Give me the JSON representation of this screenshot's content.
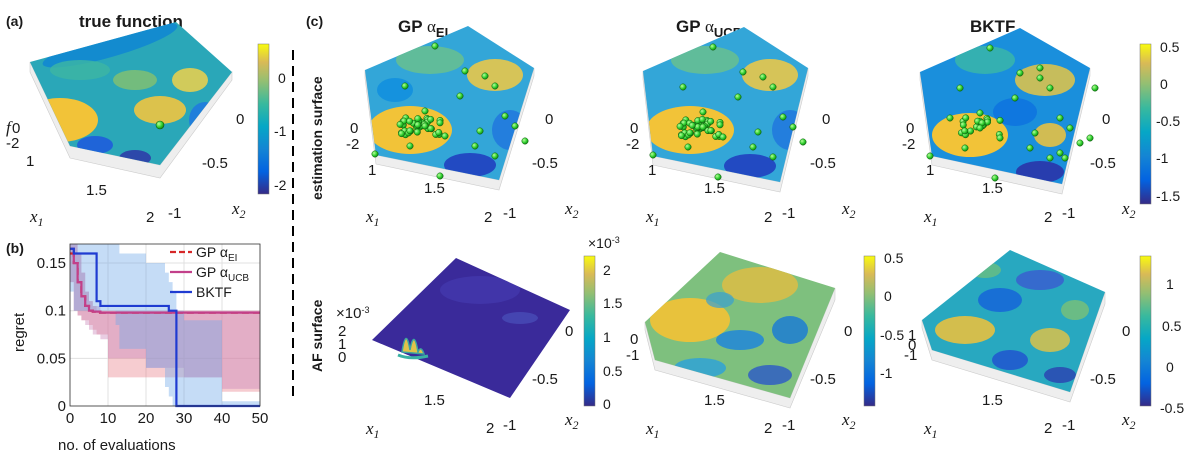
{
  "labels": {
    "a": "(a)",
    "b": "(b)",
    "c": "(c)"
  },
  "titles": {
    "true_fn": "true function",
    "gp": "GP",
    "alpha": "α",
    "ei": "EI",
    "ucb": "UCB",
    "bktf": "BKTF"
  },
  "rows": {
    "est": "estimation surface",
    "af": "AF surface"
  },
  "axes": {
    "x": "x",
    "x_sub1": "1",
    "x_sub2": "2",
    "f": "f",
    "x1_ticks": [
      "1",
      "1.5",
      "2"
    ],
    "x2_ticks": [
      "0",
      "-0.5",
      "-1"
    ],
    "f_ticks": [
      "0",
      "-2"
    ]
  },
  "colorbars": {
    "true_fn": [
      "0",
      "-1",
      "-2"
    ],
    "bktf_est": [
      "0.5",
      "0",
      "-0.5",
      "-1",
      "-1.5"
    ],
    "ei_af": [
      "2",
      "1.5",
      "1",
      "0.5",
      "0"
    ],
    "ei_af_exp": "×10",
    "ei_af_exp_pow": "-3",
    "ucb_af": [
      "0.5",
      "0",
      "-0.5",
      "-1"
    ],
    "bktf_af": [
      "1",
      "0.5",
      "0",
      "-0.5"
    ]
  },
  "af_z_ticks": {
    "ei_exp": "×10",
    "ei_exp_pow": "-3",
    "ei": [
      "2",
      "1",
      "0"
    ],
    "ucb": [
      "0",
      "-1"
    ],
    "bktf": [
      "1",
      "0",
      "-1"
    ]
  },
  "chart_data": {
    "type": "line",
    "panel": "(b)",
    "xlabel": "no. of evaluations",
    "ylabel": "regret",
    "xlim": [
      0,
      50
    ],
    "ylim": [
      0,
      0.17
    ],
    "x_ticks": [
      "0",
      "10",
      "20",
      "30",
      "40",
      "50"
    ],
    "y_ticks": [
      "0",
      "0.05",
      "0.1",
      "0.15"
    ],
    "legend_position": "top-right",
    "series": [
      {
        "name_main": "GP α",
        "name_sub": "EI",
        "color": "#d62728",
        "dash": "dashed",
        "x": [
          0,
          1,
          2,
          3,
          4,
          5,
          6,
          7,
          8,
          10,
          15,
          20,
          30,
          40,
          50
        ],
        "y": [
          0.16,
          0.15,
          0.13,
          0.115,
          0.105,
          0.1,
          0.099,
          0.098,
          0.098,
          0.098,
          0.098,
          0.098,
          0.098,
          0.098,
          0.098
        ],
        "band_upper": [
          0.17,
          0.17,
          0.16,
          0.14,
          0.12,
          0.11,
          0.105,
          0.1,
          0.1,
          0.1,
          0.1,
          0.1,
          0.1,
          0.1,
          0.1
        ],
        "band_lower": [
          0.13,
          0.1,
          0.095,
          0.09,
          0.09,
          0.085,
          0.08,
          0.075,
          0.075,
          0.03,
          0.03,
          0.03,
          0.03,
          0.015,
          0.015
        ]
      },
      {
        "name_main": "GP α",
        "name_sub": "UCB",
        "color": "#c2408a",
        "dash": "solid",
        "x": [
          0,
          1,
          2,
          3,
          4,
          5,
          6,
          8,
          10,
          20,
          30,
          40,
          50
        ],
        "y": [
          0.165,
          0.15,
          0.13,
          0.115,
          0.105,
          0.1,
          0.099,
          0.098,
          0.098,
          0.098,
          0.098,
          0.098,
          0.098
        ],
        "band_upper": [
          0.17,
          0.17,
          0.16,
          0.14,
          0.12,
          0.11,
          0.105,
          0.1,
          0.1,
          0.1,
          0.1,
          0.1,
          0.1
        ],
        "band_lower": [
          0.13,
          0.1,
          0.095,
          0.09,
          0.085,
          0.08,
          0.075,
          0.07,
          0.05,
          0.04,
          0.03,
          0.018,
          0.018
        ]
      },
      {
        "name_main": "BKTF",
        "name_sub": "",
        "color": "#1f3bd1",
        "dash": "solid",
        "x": [
          0,
          1,
          2,
          5,
          6,
          7,
          8,
          10,
          12,
          13,
          20,
          25,
          26,
          27,
          28,
          30,
          40,
          50
        ],
        "y": [
          0.165,
          0.16,
          0.16,
          0.16,
          0.16,
          0.11,
          0.105,
          0.105,
          0.105,
          0.105,
          0.105,
          0.105,
          0.1,
          0.1,
          0,
          0,
          0,
          0
        ],
        "band_upper": [
          0.17,
          0.17,
          0.17,
          0.17,
          0.17,
          0.17,
          0.17,
          0.17,
          0.17,
          0.16,
          0.15,
          0.14,
          0.13,
          0.12,
          0.1,
          0.09,
          0.005,
          0.005
        ],
        "band_lower": [
          0.12,
          0.1,
          0.1,
          0.1,
          0.1,
          0.1,
          0.1,
          0.1,
          0.085,
          0.06,
          0.04,
          0.02,
          0.01,
          0.0,
          0,
          0,
          0,
          0
        ]
      }
    ]
  }
}
